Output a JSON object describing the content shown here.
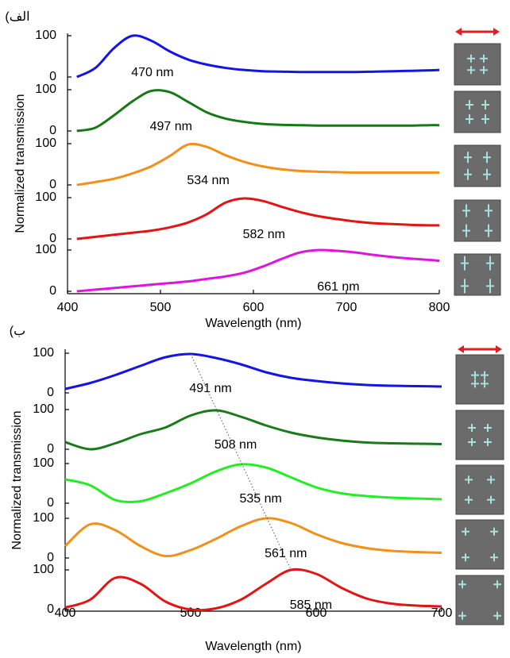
{
  "chart_data": [
    {
      "type": "line",
      "label": "الف)",
      "ylabel": "Normalized transmission",
      "xlabel": "Wavelength (nm)",
      "xlim": [
        400,
        800
      ],
      "xticks": [
        400,
        500,
        600,
        700,
        800
      ],
      "ylim": [
        0,
        100
      ],
      "yticks": [
        0,
        100
      ],
      "x": [
        410,
        430,
        450,
        470,
        490,
        510,
        530,
        550,
        570,
        590,
        610,
        630,
        650,
        670,
        690,
        710,
        730,
        750,
        770,
        790,
        800
      ],
      "series": [
        {
          "name": "470 nm",
          "color": "#1414e6",
          "values": [
            0,
            22,
            70,
            100,
            88,
            62,
            42,
            30,
            22,
            17,
            14,
            13,
            12,
            12,
            12,
            12,
            13,
            14,
            15,
            16,
            17
          ]
        },
        {
          "name": "497 nm",
          "color": "#157a15",
          "values": [
            0,
            8,
            38,
            72,
            97,
            94,
            70,
            45,
            30,
            22,
            17,
            15,
            14,
            13,
            13,
            13,
            13,
            13,
            13,
            14,
            14
          ]
        },
        {
          "name": "534 nm",
          "color": "#f39019",
          "values": [
            0,
            7,
            15,
            28,
            45,
            70,
            98,
            92,
            72,
            56,
            45,
            38,
            34,
            32,
            31,
            30,
            30,
            30,
            30,
            30,
            30
          ]
        },
        {
          "name": "582 nm",
          "color": "#e31414",
          "values": [
            0,
            5,
            10,
            15,
            20,
            28,
            40,
            60,
            88,
            98,
            92,
            78,
            65,
            55,
            48,
            42,
            38,
            36,
            34,
            33,
            33
          ]
        },
        {
          "name": "661 nm",
          "color": "#e014e0",
          "values": [
            0,
            4,
            8,
            12,
            16,
            20,
            24,
            30,
            36,
            45,
            60,
            78,
            94,
            100,
            98,
            94,
            88,
            83,
            79,
            76,
            74
          ]
        }
      ]
    },
    {
      "type": "line",
      "label": "ب)",
      "ylabel": "Normalized transmission",
      "xlabel": "Wavelength (nm)",
      "xlim": [
        400,
        700
      ],
      "xticks": [
        400,
        500,
        600,
        700
      ],
      "ylim": [
        0,
        100
      ],
      "yticks": [
        0,
        100
      ],
      "x": [
        400,
        420,
        440,
        460,
        480,
        500,
        520,
        540,
        560,
        580,
        600,
        620,
        640,
        660,
        680,
        700
      ],
      "series": [
        {
          "name": "491 nm",
          "color": "#1414e6",
          "values": [
            10,
            25,
            45,
            68,
            90,
            98,
            88,
            72,
            52,
            38,
            30,
            24,
            20,
            18,
            17,
            16
          ]
        },
        {
          "name": "508 nm",
          "color": "#1a7a1a",
          "values": [
            18,
            0,
            15,
            38,
            55,
            85,
            98,
            82,
            60,
            42,
            30,
            22,
            17,
            15,
            14,
            13
          ]
        },
        {
          "name": "535 nm",
          "color": "#22ee22",
          "values": [
            60,
            45,
            8,
            5,
            25,
            50,
            80,
            98,
            90,
            65,
            40,
            25,
            18,
            14,
            12,
            10
          ]
        },
        {
          "name": "561 nm",
          "color": "#f39019",
          "values": [
            30,
            85,
            70,
            30,
            5,
            20,
            48,
            80,
            100,
            88,
            60,
            38,
            25,
            18,
            15,
            13
          ]
        },
        {
          "name": "585 nm",
          "color": "#e31414",
          "values": [
            5,
            25,
            80,
            65,
            20,
            0,
            3,
            25,
            65,
            100,
            90,
            55,
            28,
            15,
            10,
            8
          ]
        }
      ]
    }
  ]
}
